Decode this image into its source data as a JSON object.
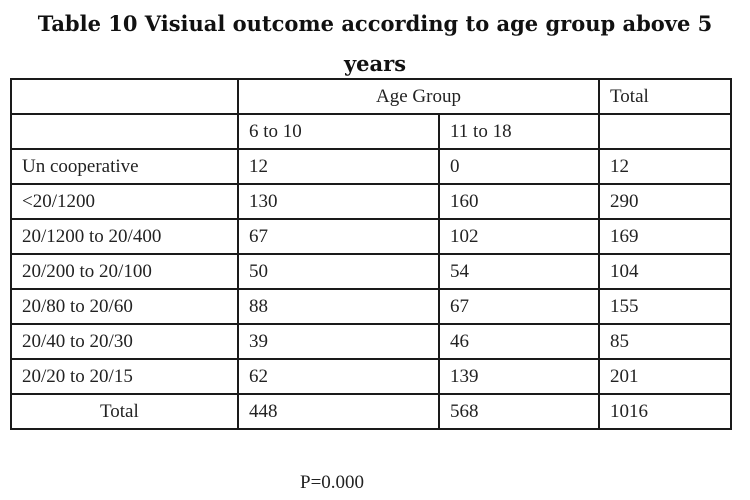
{
  "title": {
    "line1": "Table 10 Visiual  outcome according to age group above 5",
    "line2": "years"
  },
  "table": {
    "group_header": "Age Group",
    "total_header": "Total",
    "subheaders": [
      "6 to 10",
      "11 to 18"
    ],
    "rows": [
      {
        "label": "Un cooperative",
        "age_6_10": "12",
        "age_11_18": "0",
        "total": "12"
      },
      {
        "label": "<20/1200",
        "age_6_10": "130",
        "age_11_18": "160",
        "total": "290"
      },
      {
        "label": "20/1200  to 20/400",
        "age_6_10": "67",
        "age_11_18": "102",
        "total": "169"
      },
      {
        "label": "20/200 to 20/100",
        "age_6_10": "50",
        "age_11_18": "54",
        "total": "104"
      },
      {
        "label": "20/80  to 20/60",
        "age_6_10": "88",
        "age_11_18": "67",
        "total": "155"
      },
      {
        "label": "20/40 to 20/30",
        "age_6_10": "39",
        "age_11_18": "46",
        "total": "85"
      },
      {
        "label": "20/20  to 20/15",
        "age_6_10": "62",
        "age_11_18": "139",
        "total": "201"
      }
    ],
    "totals": {
      "label": "Total",
      "age_6_10": "448",
      "age_11_18": "568",
      "total": "1016"
    }
  },
  "footnote": "P=0.000"
}
